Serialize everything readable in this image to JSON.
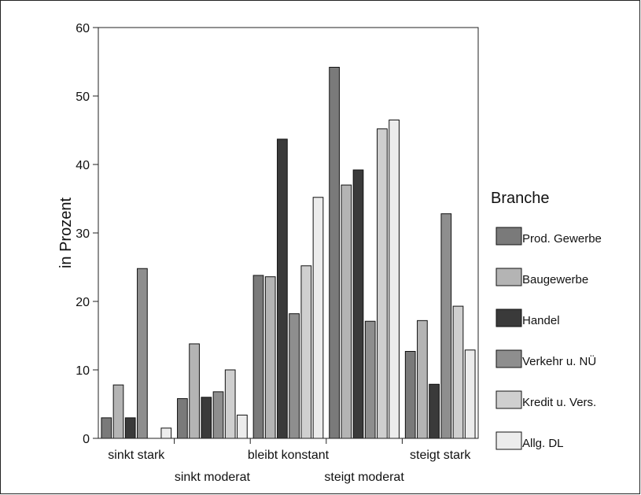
{
  "chart_data": {
    "type": "bar",
    "title": "",
    "xlabel": "",
    "ylabel": "in Prozent",
    "ylim": [
      0,
      60
    ],
    "yticks": [
      0,
      10,
      20,
      30,
      40,
      50,
      60
    ],
    "grid": false,
    "legend_title": "Branche",
    "legend_position": "right",
    "categories": [
      "sinkt stark",
      "sinkt moderat",
      "bleibt konstant",
      "steigt moderat",
      "steigt stark"
    ],
    "series": [
      {
        "name": "Prod. Gewerbe",
        "color": "#7a7a7a",
        "values": [
          3.0,
          5.8,
          23.8,
          54.2,
          12.7
        ]
      },
      {
        "name": "Baugewerbe",
        "color": "#b4b4b4",
        "values": [
          7.8,
          13.8,
          23.6,
          37.0,
          17.2
        ]
      },
      {
        "name": "Handel",
        "color": "#3a3a3a",
        "values": [
          3.0,
          6.0,
          43.7,
          39.2,
          7.9
        ]
      },
      {
        "name": "Verkehr u. NÜ",
        "color": "#8e8e8e",
        "values": [
          24.8,
          6.8,
          18.2,
          17.1,
          32.8
        ]
      },
      {
        "name": "Kredit u. Vers.",
        "color": "#cfcfcf",
        "values": [
          0.0,
          10.0,
          25.2,
          45.2,
          19.3
        ]
      },
      {
        "name": "Allg. DL",
        "color": "#ececec",
        "values": [
          1.5,
          3.4,
          35.2,
          46.5,
          12.9
        ]
      }
    ]
  }
}
